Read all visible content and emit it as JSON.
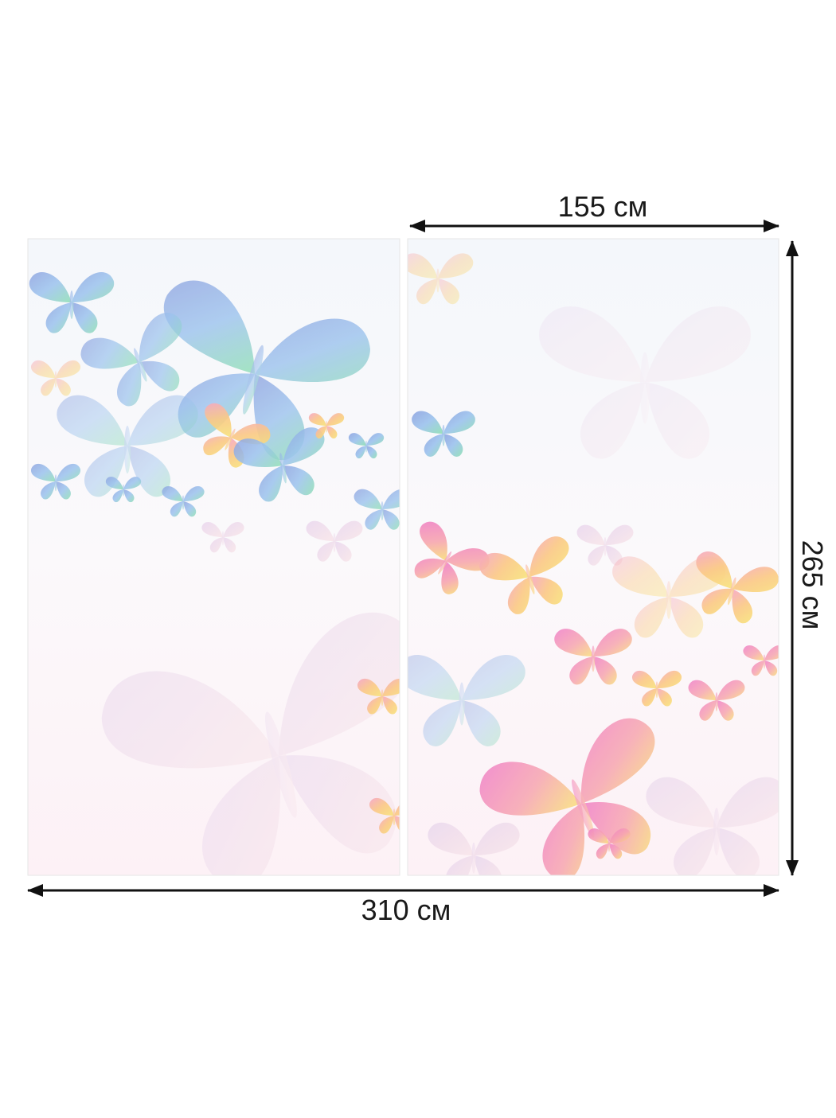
{
  "dimensions": {
    "panel_width": "155 см",
    "height": "265 см",
    "total_width": "310 см"
  }
}
